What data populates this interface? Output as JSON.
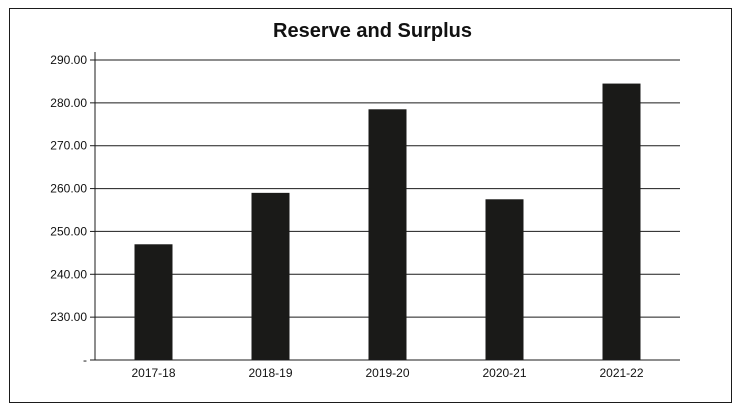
{
  "chart_data": {
    "type": "bar",
    "title": "Reserve and Surplus",
    "xlabel": "",
    "ylabel": "",
    "categories": [
      "2017-18",
      "2018-19",
      "2019-20",
      "2020-21",
      "2021-22"
    ],
    "values": [
      247.0,
      259.0,
      278.5,
      257.5,
      284.5
    ],
    "ylim": [
      220,
      290
    ],
    "yticks": [
      220,
      230,
      240,
      250,
      260,
      270,
      280,
      290
    ],
    "ytick_labels": [
      "-",
      "230.00",
      "240.00",
      "250.00",
      "260.00",
      "270.00",
      "280.00",
      "290.00"
    ],
    "grid": true,
    "legend": "none",
    "bar_color": "#1a1a18"
  }
}
